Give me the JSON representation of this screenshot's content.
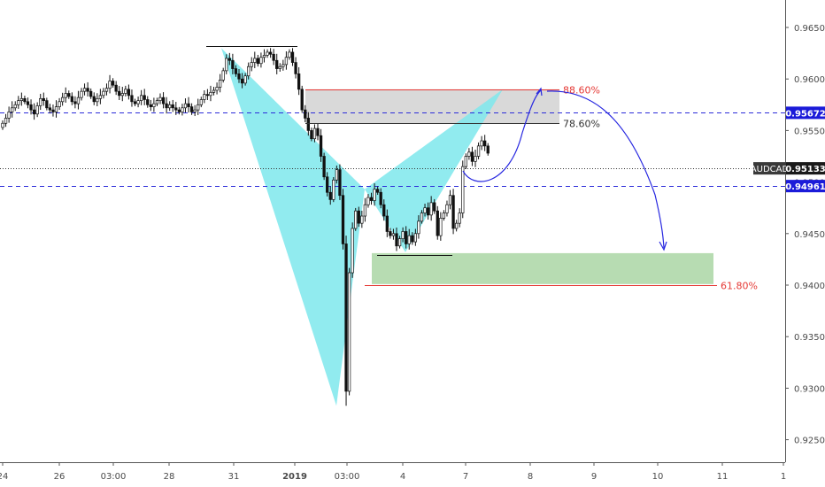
{
  "chart_data": {
    "type": "candlestick",
    "symbol": "AUDCAD",
    "y_ticks": [
      "0.96500",
      "0.96000",
      "0.95500",
      "0.95000",
      "0.94500",
      "0.94000",
      "0.93500",
      "0.93000",
      "0.92500"
    ],
    "ylim": [
      0.9215,
      0.968
    ],
    "x_ticks": [
      "24",
      "26",
      "03:00",
      "28",
      "31",
      "2019",
      "03:00",
      "4",
      "7",
      "8",
      "9",
      "10",
      "11",
      "1"
    ],
    "price_tags": [
      {
        "label": "0.95672",
        "value": 0.95672,
        "color": "#1b1bd9"
      },
      {
        "label": "AUDCAD",
        "value": 0.95133,
        "color": "#3a3a3a",
        "is_symbol": true
      },
      {
        "label": "0.95133",
        "value": 0.95133,
        "color": "#1a1a1a"
      },
      {
        "label": "0.94961",
        "value": 0.94961,
        "color": "#1b1bd9"
      }
    ],
    "horizontal_lines": [
      {
        "value": 0.95672,
        "style": "dashed",
        "color": "#2b2bd9"
      },
      {
        "value": 0.94961,
        "style": "dashed",
        "color": "#2b2bd9"
      },
      {
        "value": 0.95133,
        "style": "dotted",
        "color": "#333333"
      }
    ],
    "fib_levels": [
      {
        "label": "88.60%",
        "value": 0.959,
        "color": "#e53935"
      },
      {
        "label": "78.60%",
        "value": 0.9557,
        "color": "#333333"
      },
      {
        "label": "61.80%",
        "value": 0.94,
        "color": "#e53935"
      }
    ],
    "zones": [
      {
        "name": "sell-zone",
        "y_top": 0.959,
        "y_bottom": 0.9557,
        "color": "#d9d9d9"
      },
      {
        "name": "target-zone",
        "y_top": 0.9431,
        "y_bottom": 0.9401,
        "color": "#b7dcb2"
      }
    ],
    "pattern_points": [
      {
        "x": 250,
        "y": 0.963
      },
      {
        "x": 380,
        "y": 0.9283
      },
      {
        "x": 412,
        "y": 0.9493
      },
      {
        "x": 458,
        "y": 0.9432
      },
      {
        "x": 568,
        "y": 0.959
      }
    ],
    "candles_close": [
      0.9557,
      0.9562,
      0.9568,
      0.9572,
      0.9575,
      0.9579,
      0.9581,
      0.9578,
      0.9575,
      0.957,
      0.9566,
      0.9574,
      0.9581,
      0.9579,
      0.9572,
      0.957,
      0.9568,
      0.9573,
      0.9578,
      0.9582,
      0.9586,
      0.9583,
      0.9578,
      0.9576,
      0.9582,
      0.9588,
      0.9591,
      0.9588,
      0.9583,
      0.9578,
      0.9581,
      0.9584,
      0.9588,
      0.9591,
      0.9598,
      0.9594,
      0.9588,
      0.9584,
      0.9586,
      0.959,
      0.9584,
      0.9578,
      0.9576,
      0.9579,
      0.9584,
      0.958,
      0.9575,
      0.9573,
      0.9576,
      0.9579,
      0.9582,
      0.9576,
      0.9572,
      0.9575,
      0.9572,
      0.957,
      0.9568,
      0.9572,
      0.9576,
      0.9573,
      0.9568,
      0.957,
      0.9575,
      0.958,
      0.9585,
      0.9584,
      0.9587,
      0.9589,
      0.9592,
      0.9599,
      0.9608,
      0.962,
      0.9618,
      0.961,
      0.9605,
      0.96,
      0.9596,
      0.9603,
      0.9612,
      0.9616,
      0.962,
      0.9615,
      0.9621,
      0.9623,
      0.9626,
      0.9624,
      0.9618,
      0.961,
      0.9612,
      0.9614,
      0.9621,
      0.9626,
      0.9616,
      0.9605,
      0.959,
      0.957,
      0.9562,
      0.955,
      0.9542,
      0.9552,
      0.9545,
      0.9525,
      0.9505,
      0.949,
      0.9483,
      0.9502,
      0.9512,
      0.9487,
      0.944,
      0.9297,
      0.9412,
      0.9455,
      0.9472,
      0.946,
      0.9467,
      0.9478,
      0.9485,
      0.9482,
      0.9493,
      0.949,
      0.9478,
      0.9467,
      0.9452,
      0.9448,
      0.945,
      0.9438,
      0.9445,
      0.9452,
      0.944,
      0.9448,
      0.9442,
      0.945,
      0.9462,
      0.947,
      0.9475,
      0.9468,
      0.948,
      0.9472,
      0.9448,
      0.9465,
      0.947,
      0.9478,
      0.9487,
      0.9455,
      0.946,
      0.947,
      0.9515,
      0.9525,
      0.9529,
      0.952,
      0.9525,
      0.9535,
      0.954,
      0.9535,
      0.9528
    ]
  }
}
